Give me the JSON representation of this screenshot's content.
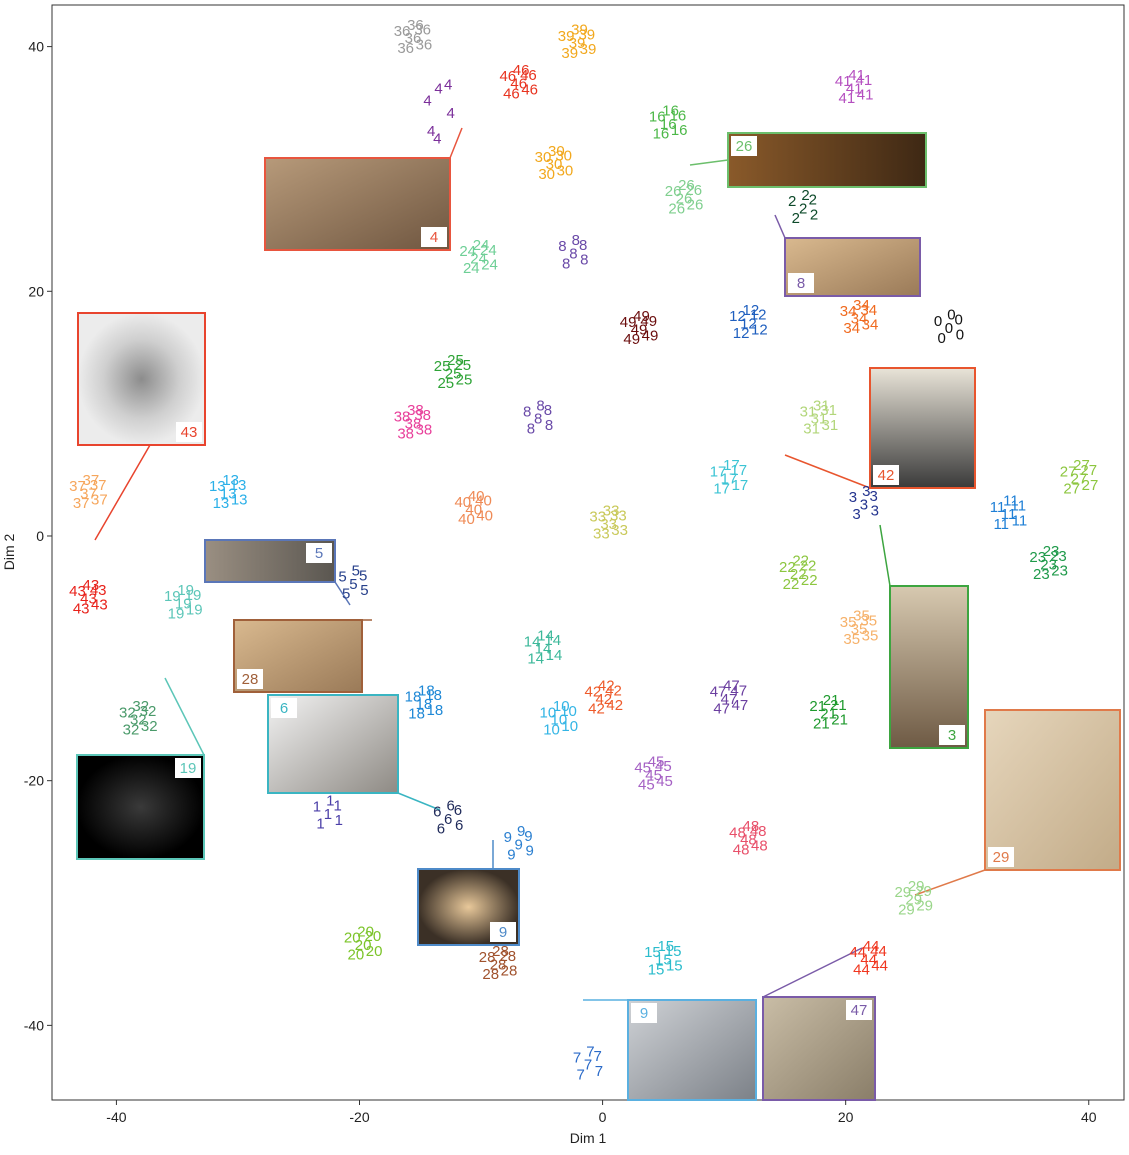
{
  "chart_data": {
    "type": "scatter",
    "xlabel": "Dim 1",
    "ylabel": "Dim 2",
    "xlim": [
      -45.3,
      42.9
    ],
    "ylim": [
      -46.1,
      43.4
    ],
    "xticks": [
      -40,
      -20,
      0,
      20,
      40
    ],
    "yticks": [
      -40,
      -20,
      0,
      20,
      40
    ],
    "grid": false,
    "series": [
      {
        "name": "36",
        "color": "#9a9a9a",
        "x": [
          -15.6,
          -16.5,
          -14.8,
          -16.2,
          -14.7,
          -15.4
        ],
        "values": [
          40.6,
          41.2,
          41.3,
          39.8,
          40.1,
          41.7
        ]
      },
      {
        "name": "39",
        "color": "#f2a81d",
        "x": [
          -2.1,
          -3.0,
          -1.3,
          -2.7,
          -1.2,
          -1.9
        ],
        "values": [
          40.2,
          40.8,
          40.9,
          39.4,
          39.7,
          41.3
        ]
      },
      {
        "name": "30",
        "color": "#f2a81d",
        "x": [
          -4.0,
          -4.9,
          -3.2,
          -4.6,
          -3.1,
          -3.8
        ],
        "values": [
          30.3,
          30.9,
          31.0,
          29.5,
          29.8,
          31.4
        ]
      },
      {
        "name": "46",
        "color": "#e8331f",
        "x": [
          -6.9,
          -7.8,
          -6.1,
          -7.5,
          -6.0,
          -6.7
        ],
        "values": [
          36.9,
          37.5,
          37.6,
          36.1,
          36.4,
          38.0
        ]
      },
      {
        "name": "4",
        "color": "#7b2f9a",
        "x": [
          -13.5,
          -14.4,
          -12.7,
          -14.1,
          -13.6,
          -12.5
        ],
        "values": [
          36.5,
          35.5,
          36.8,
          33.0,
          32.4,
          34.5
        ]
      },
      {
        "name": "41",
        "color": "#b54fc0",
        "x": [
          20.7,
          19.8,
          21.5,
          20.1,
          21.6,
          20.9
        ],
        "values": [
          36.5,
          37.1,
          37.2,
          35.7,
          36.0,
          37.6
        ]
      },
      {
        "name": "16",
        "color": "#4cb848",
        "x": [
          5.4,
          4.5,
          6.2,
          4.8,
          6.3,
          5.6
        ],
        "values": [
          33.6,
          34.2,
          34.3,
          32.8,
          33.1,
          34.7
        ]
      },
      {
        "name": "26",
        "color": "#7fcf8e",
        "x": [
          6.7,
          5.8,
          7.5,
          6.1,
          7.6,
          6.9
        ],
        "values": [
          27.5,
          28.1,
          28.2,
          26.7,
          27.0,
          28.6
        ]
      },
      {
        "name": "2",
        "color": "#0d4a2a",
        "x": [
          16.5,
          15.6,
          17.3,
          15.9,
          17.4,
          16.7
        ],
        "values": [
          26.7,
          27.3,
          27.4,
          25.9,
          26.2,
          27.8
        ]
      },
      {
        "name": "24",
        "color": "#6ecf96",
        "x": [
          -10.2,
          -11.1,
          -9.4,
          -10.8,
          -9.3,
          -10.0
        ],
        "values": [
          22.6,
          23.2,
          23.3,
          21.8,
          22.1,
          23.7
        ]
      },
      {
        "name": "8",
        "color": "#6a4aa8",
        "x": [
          -2.4,
          -3.3,
          -1.6,
          -3.0,
          -1.5,
          -2.2
        ],
        "values": [
          23.0,
          23.6,
          23.7,
          22.2,
          22.5,
          24.1
        ]
      },
      {
        "name": "49",
        "color": "#6b0d0d",
        "x": [
          3.0,
          2.1,
          3.8,
          2.4,
          3.9,
          3.2
        ],
        "values": [
          16.8,
          17.4,
          17.5,
          16.0,
          16.3,
          17.9
        ]
      },
      {
        "name": "12",
        "color": "#1f5fbf",
        "x": [
          12.0,
          11.1,
          12.8,
          11.4,
          12.9,
          12.2
        ],
        "values": [
          17.3,
          17.9,
          18.0,
          16.5,
          16.8,
          18.4
        ]
      },
      {
        "name": "34",
        "color": "#f06a1f",
        "x": [
          21.1,
          20.2,
          21.9,
          20.5,
          22.0,
          21.3
        ],
        "values": [
          17.7,
          18.3,
          18.4,
          16.9,
          17.2,
          18.8
        ]
      },
      {
        "name": "0",
        "color": "#111111",
        "x": [
          28.5,
          27.6,
          29.3,
          27.9,
          29.4,
          28.7
        ],
        "values": [
          16.9,
          17.5,
          17.6,
          16.1,
          16.4,
          18.0
        ]
      },
      {
        "name": "25",
        "color": "#2ea336",
        "x": [
          -12.3,
          -13.2,
          -11.5,
          -12.9,
          -11.4,
          -12.1
        ],
        "values": [
          13.2,
          13.8,
          13.9,
          12.4,
          12.7,
          14.3
        ]
      },
      {
        "name": "38",
        "color": "#e83f9a",
        "x": [
          -15.6,
          -16.5,
          -14.8,
          -16.2,
          -14.7,
          -15.4
        ],
        "values": [
          9.1,
          9.7,
          9.8,
          8.3,
          8.6,
          10.2
        ]
      },
      {
        "name": "8",
        "color": "#6a4aa8",
        "x": [
          -5.3,
          -6.2,
          -4.5,
          -5.9,
          -4.4,
          -5.1
        ],
        "values": [
          9.5,
          10.1,
          10.2,
          8.7,
          9.0,
          10.6
        ]
      },
      {
        "name": "31",
        "color": "#b2d67a",
        "x": [
          17.8,
          16.9,
          18.6,
          17.2,
          18.7,
          18.0
        ],
        "values": [
          9.5,
          10.1,
          10.2,
          8.7,
          9.0,
          10.6
        ]
      },
      {
        "name": "13",
        "color": "#2bb0e8",
        "x": [
          -30.8,
          -31.7,
          -30.0,
          -31.4,
          -29.9,
          -30.6
        ],
        "values": [
          3.4,
          4.0,
          4.1,
          2.6,
          2.9,
          4.5
        ]
      },
      {
        "name": "37",
        "color": "#f6a65c",
        "x": [
          -42.3,
          -43.2,
          -41.5,
          -42.9,
          -41.4,
          -42.1
        ],
        "values": [
          3.4,
          4.0,
          4.1,
          2.6,
          2.9,
          4.5
        ]
      },
      {
        "name": "40",
        "color": "#ef8a55",
        "x": [
          -10.6,
          -11.5,
          -9.8,
          -11.2,
          -9.7,
          -10.4
        ],
        "values": [
          2.1,
          2.7,
          2.8,
          1.3,
          1.6,
          3.2
        ]
      },
      {
        "name": "33",
        "color": "#c9c95a",
        "x": [
          0.5,
          -0.4,
          1.3,
          -0.1,
          1.4,
          0.7
        ],
        "values": [
          0.9,
          1.5,
          1.6,
          0.1,
          0.4,
          2.0
        ]
      },
      {
        "name": "17",
        "color": "#3cc4d4",
        "x": [
          10.4,
          9.5,
          11.2,
          9.8,
          11.3,
          10.6
        ],
        "values": [
          4.6,
          5.2,
          5.3,
          3.8,
          4.1,
          5.7
        ]
      },
      {
        "name": "3",
        "color": "#24348f",
        "x": [
          21.5,
          20.6,
          22.3,
          20.9,
          22.4,
          21.7
        ],
        "values": [
          2.5,
          3.1,
          3.2,
          1.7,
          2.0,
          3.6
        ]
      },
      {
        "name": "11",
        "color": "#1e7fd6",
        "x": [
          33.4,
          32.5,
          34.2,
          32.8,
          34.3,
          33.6
        ],
        "values": [
          1.7,
          2.3,
          2.4,
          0.9,
          1.2,
          2.8
        ]
      },
      {
        "name": "27",
        "color": "#8cc63f",
        "x": [
          39.2,
          38.3,
          40.0,
          38.6,
          40.1,
          39.4
        ],
        "values": [
          4.6,
          5.2,
          5.3,
          3.8,
          4.1,
          5.7
        ]
      },
      {
        "name": "23",
        "color": "#1f9a4a",
        "x": [
          36.7,
          35.8,
          37.5,
          36.1,
          37.6,
          36.9
        ],
        "values": [
          -2.4,
          -1.8,
          -1.7,
          -3.2,
          -2.9,
          -1.3
        ]
      },
      {
        "name": "22",
        "color": "#8cc63f",
        "x": [
          16.1,
          15.2,
          16.9,
          15.5,
          17.0,
          16.3
        ],
        "values": [
          -3.2,
          -2.6,
          -2.5,
          -4.0,
          -3.7,
          -2.1
        ]
      },
      {
        "name": "43",
        "color": "#e8221b",
        "x": [
          -42.3,
          -43.2,
          -41.5,
          -42.9,
          -41.4,
          -42.1
        ],
        "values": [
          -5.2,
          -4.6,
          -4.5,
          -6.0,
          -5.7,
          -4.1
        ]
      },
      {
        "name": "19",
        "color": "#5cc6b8",
        "x": [
          -34.5,
          -35.4,
          -33.7,
          -35.1,
          -33.6,
          -34.3
        ],
        "values": [
          -5.6,
          -5.0,
          -4.9,
          -6.4,
          -6.1,
          -4.5
        ]
      },
      {
        "name": "5",
        "color": "#27408b",
        "x": [
          -20.5,
          -21.4,
          -19.7,
          -21.1,
          -19.6,
          -20.3
        ],
        "values": [
          -4.0,
          -3.4,
          -3.3,
          -4.8,
          -4.5,
          -2.9
        ]
      },
      {
        "name": "35",
        "color": "#f6b16a",
        "x": [
          21.1,
          20.2,
          21.9,
          20.5,
          22.0,
          21.3
        ],
        "values": [
          -7.7,
          -7.1,
          -7.0,
          -8.5,
          -8.2,
          -6.6
        ]
      },
      {
        "name": "14",
        "color": "#3cb89a",
        "x": [
          -4.9,
          -5.8,
          -4.1,
          -5.5,
          -4.0,
          -4.7
        ],
        "values": [
          -9.3,
          -8.7,
          -8.6,
          -10.1,
          -9.8,
          -8.2
        ]
      },
      {
        "name": "18",
        "color": "#1e88d6",
        "x": [
          -14.7,
          -15.6,
          -13.9,
          -15.3,
          -13.8,
          -14.5
        ],
        "values": [
          -13.8,
          -13.2,
          -13.1,
          -14.6,
          -14.3,
          -12.7
        ]
      },
      {
        "name": "32",
        "color": "#4a9a6a",
        "x": [
          -38.2,
          -39.1,
          -37.4,
          -38.8,
          -37.3,
          -38.0
        ],
        "values": [
          -15.1,
          -14.5,
          -14.4,
          -15.9,
          -15.6,
          -14.0
        ]
      },
      {
        "name": "10",
        "color": "#33b5e5",
        "x": [
          -3.6,
          -4.5,
          -2.8,
          -4.2,
          -2.7,
          -3.4
        ],
        "values": [
          -15.1,
          -14.5,
          -14.4,
          -15.9,
          -15.6,
          -14.0
        ]
      },
      {
        "name": "42",
        "color": "#ee5a2a",
        "x": [
          0.1,
          -0.8,
          0.9,
          -0.5,
          1.0,
          0.3
        ],
        "values": [
          -13.4,
          -12.8,
          -12.7,
          -14.2,
          -13.9,
          -12.3
        ]
      },
      {
        "name": "47",
        "color": "#6b3fa0",
        "x": [
          10.4,
          9.5,
          11.2,
          9.8,
          11.3,
          10.6
        ],
        "values": [
          -13.4,
          -12.8,
          -12.7,
          -14.2,
          -13.9,
          -12.3
        ]
      },
      {
        "name": "21",
        "color": "#1f9a2e",
        "x": [
          18.6,
          17.7,
          19.4,
          18.0,
          19.5,
          18.8
        ],
        "values": [
          -14.6,
          -14.0,
          -13.9,
          -15.4,
          -15.1,
          -13.5
        ]
      },
      {
        "name": "45",
        "color": "#a561c4",
        "x": [
          4.2,
          3.3,
          5.0,
          3.6,
          5.1,
          4.4
        ],
        "values": [
          -19.6,
          -19.0,
          -18.9,
          -20.4,
          -20.1,
          -18.5
        ]
      },
      {
        "name": "1",
        "color": "#4b3fa8",
        "x": [
          -22.6,
          -23.5,
          -21.8,
          -23.2,
          -21.7,
          -22.4
        ],
        "values": [
          -22.8,
          -22.2,
          -22.1,
          -23.6,
          -23.3,
          -21.7
        ]
      },
      {
        "name": "6",
        "color": "#1f2a5a",
        "x": [
          -12.7,
          -13.6,
          -11.9,
          -13.3,
          -11.8,
          -12.5
        ],
        "values": [
          -23.2,
          -22.6,
          -22.5,
          -24.0,
          -23.7,
          -22.1
        ]
      },
      {
        "name": "9",
        "color": "#2a7fd0",
        "x": [
          -6.9,
          -7.8,
          -6.1,
          -7.5,
          -6.0,
          -6.7
        ],
        "values": [
          -25.3,
          -24.7,
          -24.6,
          -26.1,
          -25.8,
          -24.2
        ]
      },
      {
        "name": "48",
        "color": "#e8506a",
        "x": [
          12.0,
          11.1,
          12.8,
          11.4,
          12.9,
          12.2
        ],
        "values": [
          -24.9,
          -24.3,
          -24.2,
          -25.7,
          -25.4,
          -23.8
        ]
      },
      {
        "name": "29",
        "color": "#9ad68a",
        "x": [
          25.6,
          24.7,
          26.4,
          25.0,
          26.5,
          25.8
        ],
        "values": [
          -29.8,
          -29.2,
          -29.1,
          -30.6,
          -30.3,
          -28.7
        ]
      },
      {
        "name": "20",
        "color": "#7cc42a",
        "x": [
          -19.7,
          -20.6,
          -18.9,
          -20.3,
          -18.8,
          -19.5
        ],
        "values": [
          -33.5,
          -32.9,
          -32.8,
          -34.3,
          -34.0,
          -32.4
        ]
      },
      {
        "name": "28",
        "color": "#a0522d",
        "x": [
          -8.6,
          -9.5,
          -7.8,
          -9.2,
          -7.7,
          -8.4
        ],
        "values": [
          -35.1,
          -34.5,
          -34.4,
          -35.9,
          -35.6,
          -34.0
        ]
      },
      {
        "name": "15",
        "color": "#2bbccc",
        "x": [
          5.0,
          4.1,
          5.8,
          4.4,
          5.9,
          5.2
        ],
        "values": [
          -34.7,
          -34.1,
          -34.0,
          -35.5,
          -35.2,
          -33.6
        ]
      },
      {
        "name": "44",
        "color": "#f0361f",
        "x": [
          21.9,
          21.0,
          22.7,
          21.3,
          22.8,
          22.1
        ],
        "values": [
          -34.7,
          -34.1,
          -34.0,
          -35.5,
          -35.2,
          -33.6
        ]
      },
      {
        "name": "7",
        "color": "#2a6ac8",
        "x": [
          -1.2,
          -2.1,
          -0.4,
          -1.8,
          -0.3,
          -1.0
        ],
        "values": [
          -43.3,
          -42.7,
          -42.6,
          -44.1,
          -43.8,
          -42.2
        ]
      }
    ],
    "insets": [
      "4",
      "26",
      "8",
      "43",
      "42",
      "5",
      "28",
      "6",
      "3",
      "19",
      "29",
      "9",
      "9",
      "47"
    ]
  }
}
